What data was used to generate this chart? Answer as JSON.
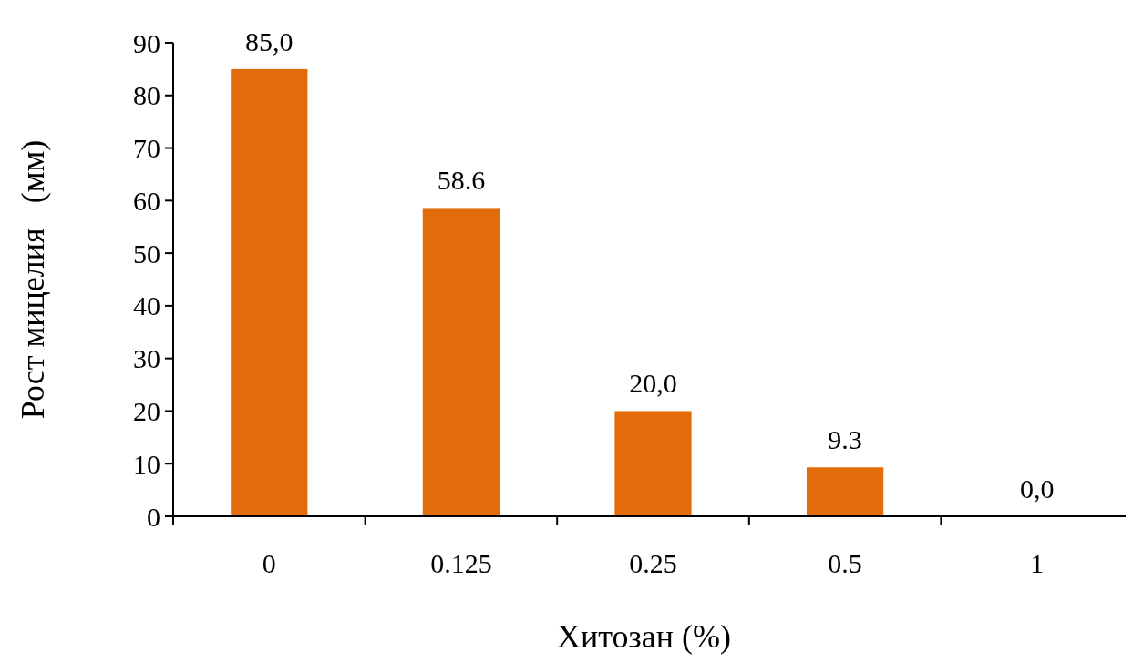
{
  "chart_data": {
    "type": "bar",
    "xlabel": "Хитозан (%)",
    "ylabel": "Рост мицелия   (мм)",
    "categories": [
      "0",
      "0.125",
      "0.25",
      "0.5",
      "1"
    ],
    "values": [
      85,
      58.6,
      20,
      9.3,
      0
    ],
    "value_labels": [
      "85,0",
      "58.6",
      "20,0",
      "9.3",
      "0,0"
    ],
    "color": "#e36c0a",
    "ylim": [
      0,
      90
    ],
    "yticks": [
      0,
      10,
      20,
      30,
      40,
      50,
      60,
      70,
      80,
      90
    ],
    "grid": false
  }
}
